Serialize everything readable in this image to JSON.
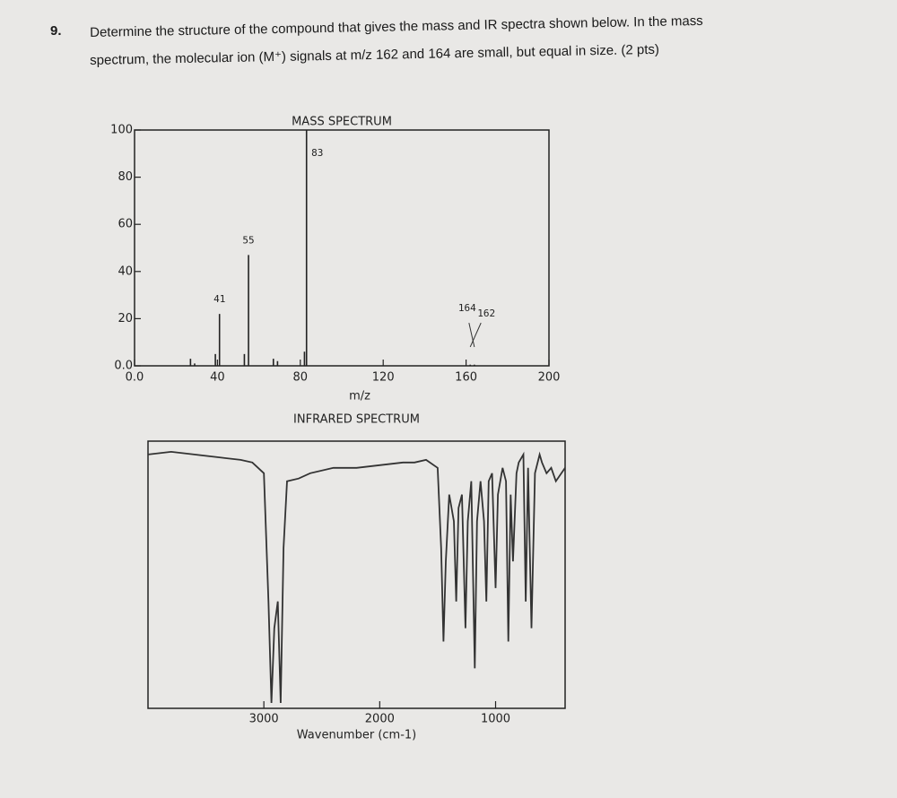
{
  "question": {
    "number": "9.",
    "lines": [
      "Determine the structure of the compound that gives the mass and IR spectra shown below.  In the mass",
      "spectrum, the molecular ion (M⁺) signals at m/z 162 and 164 are small, but equal in size.  (2 pts)"
    ]
  },
  "chart_data": [
    {
      "type": "bar",
      "title": "MASS SPECTRUM",
      "x_label": "m/z",
      "x": [
        27,
        29,
        39,
        41,
        53,
        55,
        67,
        69,
        82,
        83,
        162,
        164
      ],
      "values": [
        3,
        1,
        5,
        22,
        5,
        47,
        3,
        2,
        6,
        100,
        0.5,
        0.5
      ],
      "annotations": [
        41,
        55,
        83,
        162,
        164
      ],
      "color": "#222222",
      "xlim": [
        0,
        200
      ],
      "ylim": [
        0,
        100
      ],
      "xticks": [
        {
          "value": 0,
          "label": "0.0"
        },
        40,
        80,
        120,
        160,
        200
      ],
      "yticks": [
        {
          "value": 0,
          "label": "0.0"
        },
        20,
        40,
        60,
        80,
        100
      ]
    },
    {
      "type": "line",
      "title": "INFRARED SPECTRUM",
      "x_label": "Wavenumber (cm-1)",
      "x": [
        4000,
        3800,
        3600,
        3400,
        3200,
        3100,
        3000,
        2960,
        2935,
        2910,
        2880,
        2855,
        2830,
        2800,
        2700,
        2600,
        2400,
        2200,
        2000,
        1800,
        1700,
        1600,
        1500,
        1470,
        1450,
        1430,
        1400,
        1360,
        1340,
        1320,
        1290,
        1260,
        1240,
        1210,
        1180,
        1160,
        1130,
        1100,
        1080,
        1060,
        1030,
        1000,
        980,
        940,
        910,
        890,
        870,
        850,
        820,
        800,
        760,
        740,
        720,
        690,
        660,
        620,
        600,
        560,
        520,
        480,
        400
      ],
      "values": [
        95,
        96,
        95,
        94,
        93,
        92,
        88,
        40,
        2,
        30,
        40,
        2,
        60,
        85,
        86,
        88,
        90,
        90,
        91,
        92,
        92,
        93,
        90,
        60,
        25,
        55,
        80,
        70,
        40,
        75,
        80,
        30,
        70,
        85,
        15,
        70,
        85,
        70,
        40,
        85,
        88,
        45,
        80,
        90,
        85,
        25,
        80,
        55,
        88,
        92,
        95,
        40,
        90,
        30,
        88,
        95,
        92,
        88,
        90,
        85,
        90
      ],
      "color": "#333333",
      "xlim": [
        4000,
        400
      ],
      "ylim": [
        0,
        100
      ],
      "xticks": [
        3000,
        2000,
        1000
      ]
    }
  ]
}
